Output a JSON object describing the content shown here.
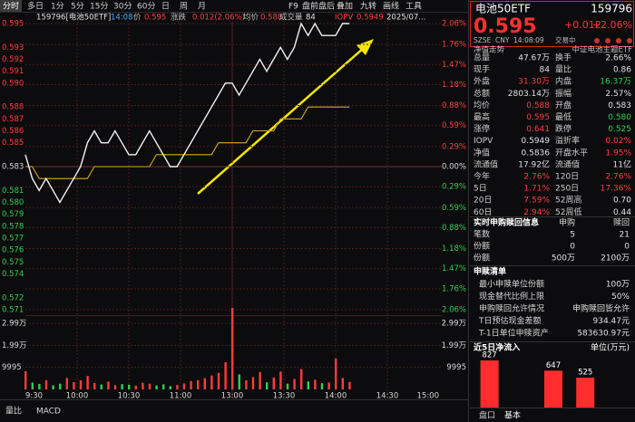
{
  "toolbar": {
    "tabs": [
      "分时",
      "多日",
      "1分",
      "5分",
      "15分",
      "30分",
      "60分",
      "日",
      "周",
      "月"
    ],
    "tools": [
      "F9",
      "盘前盘后",
      "叠加",
      "九转",
      "画线",
      "工具"
    ]
  },
  "info": [
    {
      "text": "159796[电池50ETF]",
      "color": "#e0e0e0"
    },
    {
      "text": "14:08",
      "color": "#4aa3ff"
    },
    {
      "text": "价",
      "color": "#bbbbbb"
    },
    {
      "text": "0.595",
      "color": "#ff3b3b"
    },
    {
      "text": "涨跌",
      "color": "#bbbbbb"
    },
    {
      "text": "0.012(2.06%)",
      "color": "#ff3b3b"
    },
    {
      "text": "均价",
      "color": "#bbbbbb"
    },
    {
      "text": "0.588",
      "color": "#ff3b3b"
    },
    {
      "text": "成交量",
      "color": "#bbbbbb"
    },
    {
      "text": "84",
      "color": "#e0e0e0"
    },
    {
      "text": "IOPV",
      "color": "#ff3b3b"
    },
    {
      "text": "0.5949",
      "color": "#ff3b3b"
    },
    {
      "text": "2025/07...",
      "color": "#e0e0e0"
    }
  ],
  "chart_data": {
    "type": "line",
    "x": [
      "9:30",
      "9:34",
      "9:38",
      "9:42",
      "9:46",
      "9:50",
      "9:54",
      "9:58",
      "10:02",
      "10:06",
      "10:10",
      "10:14",
      "10:18",
      "10:22",
      "10:26",
      "10:30",
      "10:34",
      "10:38",
      "10:42",
      "10:46",
      "10:50",
      "10:54",
      "10:58",
      "11:02",
      "11:06",
      "11:10",
      "11:14",
      "11:18",
      "11:22",
      "11:26",
      "13:00",
      "13:04",
      "13:08",
      "13:12",
      "13:16",
      "13:20",
      "13:24",
      "13:28",
      "13:32",
      "13:36",
      "13:40",
      "13:44",
      "13:48",
      "13:52",
      "13:56",
      "14:00",
      "14:04",
      "14:08"
    ],
    "series": [
      {
        "name": "价",
        "color": "#f2f2f2",
        "values": [
          0.584,
          0.582,
          0.581,
          0.582,
          0.581,
          0.58,
          0.581,
          0.582,
          0.583,
          0.585,
          0.586,
          0.585,
          0.585,
          0.586,
          0.585,
          0.584,
          0.584,
          0.585,
          0.586,
          0.585,
          0.584,
          0.583,
          0.583,
          0.584,
          0.585,
          0.586,
          0.587,
          0.588,
          0.589,
          0.59,
          0.59,
          0.589,
          0.59,
          0.591,
          0.592,
          0.591,
          0.592,
          0.593,
          0.592,
          0.593,
          0.595,
          0.594,
          0.595,
          0.594,
          0.594,
          0.594,
          0.595,
          0.595
        ]
      },
      {
        "name": "均价",
        "color": "#d9a81e",
        "values": [
          0.583,
          0.583,
          0.582,
          0.582,
          0.582,
          0.582,
          0.582,
          0.582,
          0.582,
          0.582,
          0.583,
          0.583,
          0.583,
          0.583,
          0.583,
          0.583,
          0.583,
          0.583,
          0.583,
          0.584,
          0.584,
          0.584,
          0.584,
          0.584,
          0.584,
          0.584,
          0.584,
          0.584,
          0.585,
          0.585,
          0.585,
          0.585,
          0.585,
          0.586,
          0.586,
          0.586,
          0.586,
          0.587,
          0.587,
          0.587,
          0.587,
          0.588,
          0.588,
          0.588,
          0.588,
          0.588,
          0.588,
          0.588
        ]
      }
    ],
    "volume": [
      8200,
      3100,
      2500,
      4200,
      1800,
      2600,
      5200,
      3300,
      4100,
      6100,
      2900,
      2200,
      3500,
      1900,
      2400,
      2100,
      1700,
      3000,
      2600,
      1800,
      2300,
      1500,
      2000,
      2700,
      3800,
      4200,
      5100,
      6300,
      7500,
      12300,
      37000,
      6800,
      4100,
      5600,
      7900,
      3200,
      5400,
      8100,
      2600,
      4700,
      9200,
      3600,
      4400,
      2800,
      3100,
      14000,
      5200,
      3400
    ],
    "ylim": [
      0.571,
      0.595
    ],
    "yticks": [
      0.595,
      0.593,
      0.592,
      0.591,
      {
        "value": 0.59,
        "label": "0.590"
      },
      0.588,
      0.587,
      0.586,
      0.585,
      0.583,
      0.581,
      {
        "value": 0.58,
        "label": "0.580"
      },
      0.579,
      0.578,
      0.577,
      0.576,
      0.575,
      0.574,
      0.572,
      0.571
    ],
    "y2lim": [
      -2.06,
      2.06
    ],
    "y2ticks": [
      {
        "value": 2.06,
        "label": "2.06%"
      },
      {
        "value": 1.76,
        "label": "1.76%"
      },
      {
        "value": 1.47,
        "label": "1.47%"
      },
      {
        "value": 1.18,
        "label": "1.18%"
      },
      {
        "value": 0.88,
        "label": "0.88%"
      },
      {
        "value": 0.59,
        "label": "0.59%"
      },
      {
        "value": 0.29,
        "label": "0.29%"
      },
      {
        "value": 0,
        "label": "0.00%"
      },
      {
        "value": -0.29,
        "label": "0.29%"
      },
      {
        "value": -0.59,
        "label": "0.59%"
      },
      {
        "value": -0.88,
        "label": "0.88%"
      },
      {
        "value": -1.18,
        "label": "1.18%"
      },
      {
        "value": -1.47,
        "label": "1.47%"
      },
      {
        "value": -1.76,
        "label": "1.76%"
      },
      {
        "value": -2.06,
        "label": "2.06%"
      }
    ],
    "xticks": [
      "9:30",
      "10:00",
      "10:30",
      "11:00",
      "13:00",
      "13:30",
      "14:00",
      "14:30",
      "15:00"
    ],
    "vlim": [
      0,
      29985
    ],
    "vticks": [
      {
        "value": 29985,
        "label": "2.99万"
      },
      {
        "value": 19990,
        "label": "1.99万"
      },
      9995
    ],
    "grid": true
  },
  "bottom_tabs": [
    "量比",
    "MACD"
  ],
  "quote": {
    "name": "电池50ETF",
    "code": "159796",
    "price": "0.595",
    "change": "+0.012",
    "pct": "+2.06%",
    "meta": [
      "SZSE",
      "CNY",
      "14:08:09",
      "交易中"
    ],
    "nav_title": "净值走势",
    "nav_sub": "中证电池主题ETF"
  },
  "stats": [
    [
      {
        "t": "总量"
      },
      {
        "t": "47.67万",
        "c": "#e0e0e0"
      },
      {
        "t": "换手"
      },
      {
        "t": "2.66%",
        "c": "#e0e0e0"
      }
    ],
    [
      {
        "t": "现手"
      },
      {
        "t": "84",
        "c": "#e0e0e0"
      },
      {
        "t": "量比"
      },
      {
        "t": "0.86",
        "c": "#e0e0e0"
      }
    ],
    [
      {
        "t": "外盘"
      },
      {
        "t": "31.30万",
        "c": "#ff3b3b"
      },
      {
        "t": "内盘"
      },
      {
        "t": "16.37万",
        "c": "#2bd14f"
      }
    ],
    [
      {
        "t": "总额"
      },
      {
        "t": "2803.14万",
        "c": "#e0e0e0"
      },
      {
        "t": "振幅"
      },
      {
        "t": "2.57%",
        "c": "#e0e0e0"
      }
    ],
    [
      {
        "t": "均价"
      },
      {
        "t": "0.588",
        "c": "#ff3b3b"
      },
      {
        "t": "开盘"
      },
      {
        "t": "0.583",
        "c": "#e0e0e0"
      }
    ],
    [
      {
        "t": "最高"
      },
      {
        "t": "0.595",
        "c": "#ff3b3b"
      },
      {
        "t": "最低"
      },
      {
        "t": "0.580",
        "c": "#2bd14f"
      }
    ],
    [
      {
        "t": "涨停"
      },
      {
        "t": "0.641",
        "c": "#ff3b3b"
      },
      {
        "t": "跌停"
      },
      {
        "t": "0.525",
        "c": "#2bd14f"
      }
    ],
    [
      {
        "t": "IOPV"
      },
      {
        "t": "0.5949",
        "c": "#e0e0e0"
      },
      {
        "t": "溢折率"
      },
      {
        "t": "0.02%",
        "c": "#ff3b3b"
      }
    ],
    [
      {
        "t": "净值"
      },
      {
        "t": "0.5836",
        "c": "#e0e0e0"
      },
      {
        "t": "开盘水平"
      },
      {
        "t": "1.95%",
        "c": "#ff3b3b"
      }
    ],
    [
      {
        "t": "流通值"
      },
      {
        "t": "17.92亿",
        "c": "#e0e0e0"
      },
      {
        "t": "流通值"
      },
      {
        "t": "11亿",
        "c": "#e0e0e0"
      }
    ],
    [
      {
        "t": "今年"
      },
      {
        "t": "2.76%",
        "c": "#ff3b3b"
      },
      {
        "t": "120日"
      },
      {
        "t": "2.76%",
        "c": "#ff3b3b"
      }
    ],
    [
      {
        "t": "5日"
      },
      {
        "t": "1.71%",
        "c": "#ff3b3b"
      },
      {
        "t": "250日"
      },
      {
        "t": "17.36%",
        "c": "#ff3b3b"
      }
    ],
    [
      {
        "t": "20日"
      },
      {
        "t": "7.59%",
        "c": "#ff3b3b"
      },
      {
        "t": "52周高"
      },
      {
        "t": "0.70",
        "c": "#e0e0e0"
      }
    ],
    [
      {
        "t": "60日"
      },
      {
        "t": "2.94%",
        "c": "#ff3b3b"
      },
      {
        "t": "52周低"
      },
      {
        "t": "0.44",
        "c": "#e0e0e0"
      }
    ]
  ],
  "creation": {
    "title": "实时申购赎回信息",
    "cols": [
      "申购",
      "赎回"
    ],
    "rows": [
      [
        "笔数",
        "5",
        "21"
      ],
      [
        "份额",
        "0",
        "0"
      ],
      [
        "份额",
        "500万",
        "2100万"
      ]
    ]
  },
  "list": {
    "title": "申赎清单",
    "rows": [
      [
        "最小申赎单位份额",
        "100万"
      ],
      [
        "现金替代比例上限",
        "50%"
      ],
      [
        "申购赎回允许情况",
        "申购赎回皆允许"
      ],
      [
        "T日预估现金差额",
        "934.47元"
      ],
      [
        "T-1日单位申赎资产",
        "583630.97元"
      ]
    ]
  },
  "flow": {
    "title": "近5日净流入",
    "unit": "单位(万元)",
    "color": "#ff2d2d",
    "values": [
      827,
      null,
      647,
      525,
      null
    ],
    "value_labels": [
      "827",
      null,
      "647",
      "525",
      null
    ]
  },
  "side_tabs": [
    "盘口",
    "基本"
  ]
}
